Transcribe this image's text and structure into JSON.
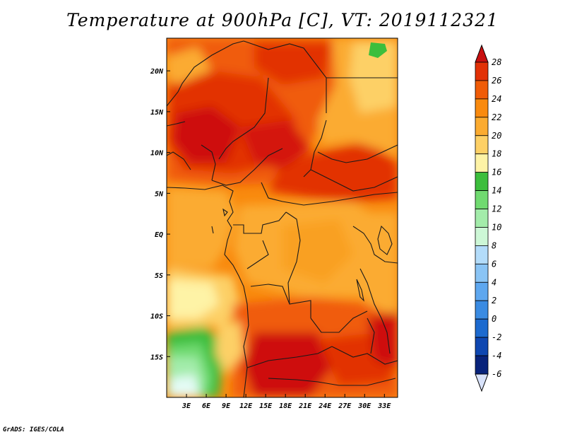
{
  "title": "Temperature at 900hPa [C], VT: 2019112321",
  "credit": "GrADS: IGES/COLA",
  "map": {
    "lat_labels": [
      "20N",
      "15N",
      "10N",
      "5N",
      "EQ",
      "5S",
      "10S",
      "15S"
    ],
    "lon_labels": [
      "3E",
      "6E",
      "9E",
      "12E",
      "15E",
      "18E",
      "21E",
      "24E",
      "27E",
      "30E",
      "33E"
    ],
    "lon_range": [
      0,
      35
    ],
    "lat_range": [
      -20,
      24
    ]
  },
  "colorbar": {
    "labels": [
      "28",
      "26",
      "24",
      "22",
      "20",
      "18",
      "16",
      "14",
      "12",
      "10",
      "8",
      "6",
      "4",
      "2",
      "0",
      "-2",
      "-4",
      "-6"
    ],
    "colors": [
      "#ce0d0d",
      "#e23106",
      "#f05c07",
      "#f98a0e",
      "#fbab30",
      "#fdd066",
      "#fef3a6",
      "#3cbe3c",
      "#70da70",
      "#a3ecaa",
      "#cdf7d6",
      "#b3dcfa",
      "#8ac4f5",
      "#5ea7ef",
      "#3a8be2",
      "#1c6acf",
      "#0e47b1",
      "#08237b",
      "#030a58"
    ],
    "top_cap": "#c81010",
    "bottom_cap": "#d8e2fa"
  }
}
